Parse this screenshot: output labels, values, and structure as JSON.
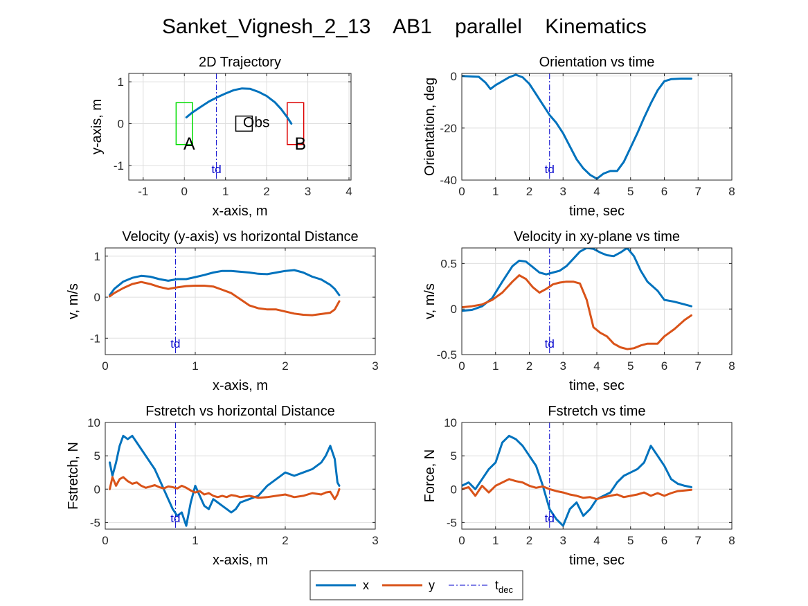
{
  "figure": {
    "title": "Sanket_Vignesh_2_13    AB1    parallel    Kinematics"
  },
  "colors": {
    "x": "#0072bd",
    "y": "#d95319",
    "tdec": "#0000cc",
    "start_box": "#00dd00",
    "end_box": "#dd0000",
    "obstacle": "#000000"
  },
  "legend": {
    "x_label": "x",
    "y_label": "y",
    "tdec_main": "t",
    "tdec_sub": "dec"
  },
  "chart_data": [
    {
      "id": "traj",
      "type": "line",
      "title": "2D Trajectory",
      "xlabel": "x-axis, m",
      "ylabel": "y-axis, m",
      "xlim": [
        -1.35,
        4.05
      ],
      "ylim": [
        -1.35,
        1.2
      ],
      "xticks": [
        -1,
        0,
        1,
        2,
        3,
        4
      ],
      "yticks": [
        -1,
        0,
        1
      ],
      "grid": true,
      "series": [
        {
          "key": "x",
          "x": [
            0.05,
            0.2,
            0.4,
            0.6,
            0.8,
            1.0,
            1.2,
            1.4,
            1.6,
            1.8,
            2.0,
            2.2,
            2.35,
            2.5,
            2.6
          ],
          "y": [
            0.15,
            0.27,
            0.4,
            0.53,
            0.63,
            0.72,
            0.8,
            0.84,
            0.83,
            0.76,
            0.66,
            0.51,
            0.35,
            0.15,
            0.0
          ]
        }
      ],
      "tdec": {
        "x": 0.78,
        "label": "td"
      },
      "annotations": [
        {
          "type": "rect",
          "color": "start_box",
          "x0": -0.2,
          "x1": 0.2,
          "y0": -0.5,
          "y1": 0.5
        },
        {
          "type": "rect",
          "color": "end_box",
          "x0": 2.5,
          "x1": 2.9,
          "y0": -0.5,
          "y1": 0.5
        },
        {
          "type": "rect",
          "color": "obstacle",
          "x0": 1.25,
          "x1": 1.65,
          "y0": -0.18,
          "y1": 0.18
        },
        {
          "type": "text",
          "text": "A",
          "x": 0.12,
          "y": -0.62
        },
        {
          "type": "text",
          "text": "B",
          "x": 2.82,
          "y": -0.62
        },
        {
          "type": "text",
          "text": "Obs",
          "x": 1.75,
          "y": -0.08
        }
      ]
    },
    {
      "id": "orient",
      "type": "line",
      "title": "Orientation vs time",
      "xlabel": "time, sec",
      "ylabel": "Orientation, deg",
      "xlim": [
        0,
        8
      ],
      "ylim": [
        -40,
        1
      ],
      "xticks": [
        0,
        1,
        2,
        3,
        4,
        5,
        6,
        7,
        8
      ],
      "yticks": [
        -40,
        -20,
        0
      ],
      "grid": true,
      "series": [
        {
          "key": "x",
          "x": [
            0,
            0.5,
            0.7,
            0.85,
            1.0,
            1.2,
            1.4,
            1.6,
            1.8,
            2.0,
            2.2,
            2.4,
            2.6,
            2.8,
            3.0,
            3.2,
            3.4,
            3.6,
            3.8,
            4.0,
            4.2,
            4.4,
            4.6,
            4.8,
            5.0,
            5.2,
            5.4,
            5.6,
            5.8,
            6.0,
            6.2,
            6.5,
            6.8
          ],
          "y": [
            0,
            -0.3,
            -2.5,
            -5.0,
            -3.5,
            -2.0,
            -0.5,
            0.5,
            -0.5,
            -3.0,
            -7.0,
            -11.0,
            -15.0,
            -18.0,
            -22.0,
            -27.0,
            -32.0,
            -35.5,
            -38.0,
            -39.5,
            -37.5,
            -36.5,
            -36.5,
            -33.0,
            -27.5,
            -22.0,
            -16.0,
            -10.5,
            -5.5,
            -2.0,
            -1.2,
            -1.0,
            -1.0
          ]
        }
      ],
      "tdec": {
        "x": 2.6,
        "label": "td"
      }
    },
    {
      "id": "vel_dist",
      "type": "line",
      "title": "Velocity (y-axis) vs horizontal Distance",
      "xlabel": "x-axis, m",
      "ylabel": "v, m/s",
      "xlim": [
        0,
        3
      ],
      "ylim": [
        -1.4,
        1.2
      ],
      "xticks": [
        0,
        1,
        2,
        3
      ],
      "yticks": [
        -1,
        0,
        1
      ],
      "grid": true,
      "series": [
        {
          "key": "x",
          "x": [
            0.05,
            0.1,
            0.2,
            0.3,
            0.4,
            0.5,
            0.6,
            0.7,
            0.8,
            0.9,
            1.0,
            1.1,
            1.2,
            1.3,
            1.4,
            1.5,
            1.6,
            1.7,
            1.8,
            1.9,
            2.0,
            2.1,
            2.2,
            2.3,
            2.4,
            2.5,
            2.55,
            2.6
          ],
          "y": [
            0.05,
            0.2,
            0.38,
            0.47,
            0.52,
            0.5,
            0.44,
            0.4,
            0.44,
            0.44,
            0.49,
            0.54,
            0.6,
            0.64,
            0.64,
            0.62,
            0.6,
            0.57,
            0.56,
            0.6,
            0.64,
            0.66,
            0.6,
            0.5,
            0.43,
            0.3,
            0.2,
            0.05
          ]
        },
        {
          "key": "y",
          "x": [
            0.05,
            0.1,
            0.2,
            0.3,
            0.4,
            0.5,
            0.6,
            0.7,
            0.8,
            0.9,
            1.0,
            1.1,
            1.2,
            1.3,
            1.4,
            1.5,
            1.6,
            1.7,
            1.8,
            1.9,
            2.0,
            2.1,
            2.2,
            2.3,
            2.4,
            2.5,
            2.55,
            2.6
          ],
          "y": [
            0.02,
            0.1,
            0.22,
            0.32,
            0.37,
            0.32,
            0.25,
            0.2,
            0.24,
            0.27,
            0.28,
            0.28,
            0.26,
            0.18,
            0.1,
            -0.05,
            -0.2,
            -0.27,
            -0.3,
            -0.3,
            -0.35,
            -0.4,
            -0.43,
            -0.44,
            -0.41,
            -0.38,
            -0.3,
            -0.1
          ]
        }
      ],
      "tdec": {
        "x": 0.78,
        "label": "td"
      }
    },
    {
      "id": "vel_time",
      "type": "line",
      "title": "Velocity in xy-plane vs time",
      "xlabel": "time, sec",
      "ylabel": "v, m/s",
      "xlim": [
        0,
        8
      ],
      "ylim": [
        -0.5,
        0.67
      ],
      "xticks": [
        0,
        1,
        2,
        3,
        4,
        5,
        6,
        7,
        8
      ],
      "yticks": [
        -0.5,
        0,
        0.5
      ],
      "grid": true,
      "series": [
        {
          "key": "x",
          "x": [
            0,
            0.3,
            0.6,
            0.9,
            1.2,
            1.5,
            1.7,
            1.9,
            2.1,
            2.3,
            2.5,
            2.7,
            2.9,
            3.1,
            3.3,
            3.5,
            3.7,
            3.9,
            4.1,
            4.3,
            4.5,
            4.7,
            4.9,
            5.1,
            5.3,
            5.5,
            5.8,
            6.0,
            6.3,
            6.6,
            6.8
          ],
          "y": [
            -0.02,
            -0.01,
            0.03,
            0.12,
            0.3,
            0.47,
            0.53,
            0.52,
            0.46,
            0.4,
            0.38,
            0.4,
            0.42,
            0.47,
            0.55,
            0.63,
            0.67,
            0.66,
            0.62,
            0.59,
            0.58,
            0.62,
            0.67,
            0.58,
            0.42,
            0.3,
            0.2,
            0.1,
            0.08,
            0.05,
            0.03
          ]
        },
        {
          "key": "y",
          "x": [
            0,
            0.3,
            0.6,
            0.9,
            1.2,
            1.5,
            1.7,
            1.9,
            2.1,
            2.3,
            2.5,
            2.7,
            2.9,
            3.1,
            3.3,
            3.5,
            3.7,
            3.9,
            4.1,
            4.3,
            4.5,
            4.7,
            4.9,
            5.1,
            5.3,
            5.5,
            5.8,
            6.0,
            6.3,
            6.6,
            6.8
          ],
          "y": [
            0.02,
            0.03,
            0.05,
            0.1,
            0.18,
            0.3,
            0.37,
            0.33,
            0.24,
            0.18,
            0.22,
            0.27,
            0.29,
            0.3,
            0.3,
            0.28,
            0.1,
            -0.2,
            -0.26,
            -0.3,
            -0.38,
            -0.42,
            -0.44,
            -0.43,
            -0.4,
            -0.38,
            -0.38,
            -0.3,
            -0.22,
            -0.12,
            -0.07
          ]
        }
      ],
      "tdec": {
        "x": 2.6,
        "label": "td"
      }
    },
    {
      "id": "fs_dist",
      "type": "line",
      "title": "Fstretch vs horizontal Distance",
      "xlabel": "x-axis, m",
      "ylabel": "Fstretch, N",
      "xlim": [
        0,
        3
      ],
      "ylim": [
        -6,
        10
      ],
      "xticks": [
        0,
        1,
        2,
        3
      ],
      "yticks": [
        -5,
        0,
        5,
        10
      ],
      "grid": true,
      "series": [
        {
          "key": "x",
          "x": [
            0.05,
            0.08,
            0.12,
            0.16,
            0.2,
            0.25,
            0.3,
            0.35,
            0.4,
            0.45,
            0.5,
            0.55,
            0.6,
            0.65,
            0.7,
            0.75,
            0.8,
            0.85,
            0.9,
            0.95,
            1.0,
            1.05,
            1.1,
            1.15,
            1.2,
            1.25,
            1.3,
            1.35,
            1.4,
            1.45,
            1.5,
            1.6,
            1.7,
            1.8,
            1.9,
            2.0,
            2.1,
            2.2,
            2.3,
            2.4,
            2.45,
            2.5,
            2.55,
            2.58,
            2.6
          ],
          "y": [
            4.0,
            2.0,
            4.0,
            6.5,
            8.0,
            7.5,
            8.0,
            7.0,
            6.0,
            5.0,
            4.0,
            3.0,
            1.5,
            0.0,
            -1.5,
            -3.0,
            -4.0,
            -3.5,
            -5.5,
            -2.0,
            0.5,
            -1.0,
            -2.5,
            -3.0,
            -1.5,
            -2.0,
            -2.5,
            -3.0,
            -3.5,
            -3.0,
            -2.0,
            -1.5,
            -1.0,
            0.5,
            1.5,
            2.5,
            2.0,
            2.5,
            3.0,
            4.0,
            5.0,
            6.5,
            4.5,
            1.0,
            0.5
          ]
        },
        {
          "key": "y",
          "x": [
            0.05,
            0.08,
            0.12,
            0.16,
            0.2,
            0.25,
            0.3,
            0.35,
            0.4,
            0.45,
            0.5,
            0.55,
            0.6,
            0.65,
            0.7,
            0.75,
            0.8,
            0.85,
            0.9,
            0.95,
            1.0,
            1.05,
            1.1,
            1.15,
            1.2,
            1.25,
            1.3,
            1.35,
            1.4,
            1.45,
            1.5,
            1.6,
            1.7,
            1.8,
            1.9,
            2.0,
            2.1,
            2.2,
            2.3,
            2.4,
            2.45,
            2.5,
            2.55,
            2.58,
            2.6
          ],
          "y": [
            0.0,
            1.8,
            0.5,
            1.5,
            1.8,
            1.2,
            0.8,
            1.0,
            0.5,
            0.2,
            0.4,
            0.6,
            0.3,
            0.1,
            0.4,
            0.3,
            0.1,
            0.5,
            0.2,
            -0.2,
            -0.5,
            -0.3,
            -0.8,
            -0.6,
            -1.0,
            -1.2,
            -1.0,
            -1.2,
            -0.9,
            -1.0,
            -1.2,
            -1.0,
            -1.3,
            -1.2,
            -1.0,
            -0.8,
            -1.2,
            -1.0,
            -0.6,
            -0.8,
            -0.5,
            -0.4,
            -1.5,
            -0.8,
            0.0
          ]
        }
      ],
      "tdec": {
        "x": 0.78,
        "label": "td"
      }
    },
    {
      "id": "fs_time",
      "type": "line",
      "title": "Fstretch vs time",
      "xlabel": "time, sec",
      "ylabel": "Force, N",
      "xlim": [
        0,
        8
      ],
      "ylim": [
        -6,
        10
      ],
      "xticks": [
        0,
        1,
        2,
        3,
        4,
        5,
        6,
        7,
        8
      ],
      "yticks": [
        -5,
        0,
        5,
        10
      ],
      "grid": true,
      "series": [
        {
          "key": "x",
          "x": [
            0,
            0.2,
            0.4,
            0.6,
            0.8,
            1.0,
            1.2,
            1.4,
            1.6,
            1.8,
            2.0,
            2.2,
            2.4,
            2.6,
            2.8,
            3.0,
            3.2,
            3.4,
            3.6,
            3.8,
            4.0,
            4.2,
            4.4,
            4.6,
            4.8,
            5.0,
            5.2,
            5.4,
            5.6,
            5.8,
            6.0,
            6.2,
            6.4,
            6.6,
            6.8
          ],
          "y": [
            0.5,
            1.0,
            0.0,
            1.5,
            3.0,
            4.0,
            7.0,
            8.0,
            7.5,
            6.5,
            5.0,
            3.5,
            0.5,
            -3.0,
            -4.5,
            -5.5,
            -3.0,
            -2.0,
            -4.0,
            -3.0,
            -1.5,
            -1.0,
            -0.5,
            1.0,
            2.0,
            2.5,
            3.0,
            4.0,
            6.5,
            5.0,
            3.5,
            1.5,
            0.8,
            0.5,
            0.3
          ]
        },
        {
          "key": "y",
          "x": [
            0,
            0.2,
            0.4,
            0.6,
            0.8,
            1.0,
            1.2,
            1.4,
            1.6,
            1.8,
            2.0,
            2.2,
            2.4,
            2.6,
            2.8,
            3.0,
            3.2,
            3.4,
            3.6,
            3.8,
            4.0,
            4.2,
            4.4,
            4.6,
            4.8,
            5.0,
            5.2,
            5.4,
            5.6,
            5.8,
            6.0,
            6.2,
            6.4,
            6.6,
            6.8
          ],
          "y": [
            0.0,
            0.3,
            -1.0,
            0.5,
            -0.5,
            0.5,
            1.0,
            1.5,
            1.2,
            1.0,
            0.5,
            0.2,
            0.4,
            0.0,
            -0.3,
            -0.5,
            -0.8,
            -1.0,
            -1.3,
            -1.2,
            -1.5,
            -1.2,
            -1.0,
            -0.8,
            -1.2,
            -1.0,
            -0.8,
            -0.5,
            -1.0,
            -0.6,
            -1.0,
            -0.6,
            -0.3,
            -0.2,
            -0.1
          ]
        }
      ],
      "tdec": {
        "x": 2.6,
        "label": "td"
      }
    }
  ]
}
